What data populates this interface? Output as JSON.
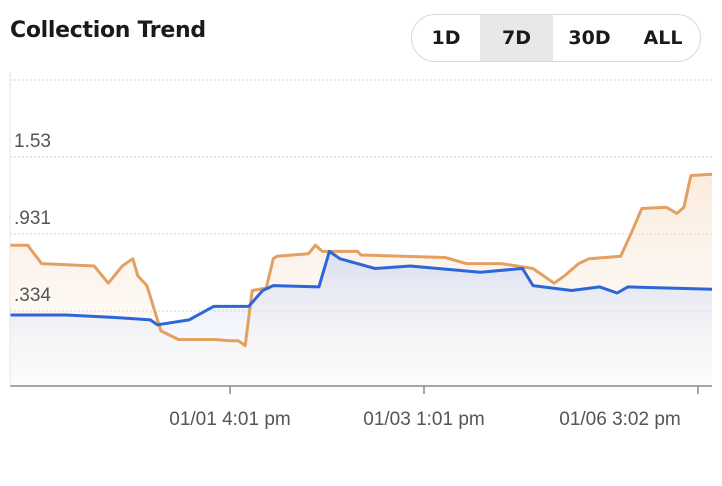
{
  "title": "Collection Trend",
  "range_options": [
    "1D",
    "7D",
    "30D",
    "ALL"
  ],
  "selected_range": "7D",
  "colors": {
    "series_a": "#e2a062",
    "series_b": "#2c66d9",
    "grid": "#cfcfcf",
    "axis": "#888888",
    "label": "#555555",
    "active_bg": "#e8e8e8"
  },
  "chart_data": {
    "type": "line",
    "y_ticks": [
      ".334",
      ".931",
      "1.53"
    ],
    "x_ticks": [
      "01/01 4:01 pm",
      "01/03 1:01 pm",
      "01/06 3:02 pm"
    ],
    "grid": true,
    "legend": "none",
    "ylim": [
      -0.2,
      2.3
    ],
    "series": [
      {
        "values": [
          [
            0.0,
            0.95
          ],
          [
            0.025,
            0.95
          ],
          [
            0.045,
            0.8
          ],
          [
            0.12,
            0.78
          ],
          [
            0.14,
            0.64
          ],
          [
            0.16,
            0.78
          ],
          [
            0.175,
            0.84
          ],
          [
            0.182,
            0.7
          ],
          [
            0.195,
            0.62
          ],
          [
            0.215,
            0.25
          ],
          [
            0.24,
            0.18
          ],
          [
            0.29,
            0.18
          ],
          [
            0.315,
            0.17
          ],
          [
            0.325,
            0.17
          ],
          [
            0.335,
            0.13
          ],
          [
            0.345,
            0.58
          ],
          [
            0.365,
            0.6
          ],
          [
            0.375,
            0.84
          ],
          [
            0.38,
            0.86
          ],
          [
            0.425,
            0.88
          ],
          [
            0.435,
            0.95
          ],
          [
            0.445,
            0.9
          ],
          [
            0.495,
            0.9
          ],
          [
            0.5,
            0.87
          ],
          [
            0.56,
            0.86
          ],
          [
            0.62,
            0.85
          ],
          [
            0.65,
            0.8
          ],
          [
            0.7,
            0.8
          ],
          [
            0.745,
            0.76
          ],
          [
            0.775,
            0.64
          ],
          [
            0.79,
            0.7
          ],
          [
            0.81,
            0.8
          ],
          [
            0.825,
            0.84
          ],
          [
            0.87,
            0.86
          ],
          [
            0.885,
            1.05
          ],
          [
            0.9,
            1.25
          ],
          [
            0.935,
            1.26
          ],
          [
            0.95,
            1.21
          ],
          [
            0.96,
            1.26
          ],
          [
            0.97,
            1.52
          ],
          [
            1.0,
            1.53
          ]
        ]
      },
      {
        "values": [
          [
            0.0,
            0.38
          ],
          [
            0.08,
            0.38
          ],
          [
            0.15,
            0.36
          ],
          [
            0.2,
            0.34
          ],
          [
            0.21,
            0.3
          ],
          [
            0.255,
            0.34
          ],
          [
            0.29,
            0.45
          ],
          [
            0.34,
            0.45
          ],
          [
            0.36,
            0.58
          ],
          [
            0.375,
            0.62
          ],
          [
            0.44,
            0.61
          ],
          [
            0.455,
            0.9
          ],
          [
            0.47,
            0.84
          ],
          [
            0.52,
            0.76
          ],
          [
            0.57,
            0.78
          ],
          [
            0.61,
            0.76
          ],
          [
            0.67,
            0.73
          ],
          [
            0.73,
            0.76
          ],
          [
            0.745,
            0.62
          ],
          [
            0.8,
            0.58
          ],
          [
            0.84,
            0.61
          ],
          [
            0.865,
            0.56
          ],
          [
            0.88,
            0.61
          ],
          [
            1.0,
            0.59
          ]
        ]
      }
    ]
  }
}
